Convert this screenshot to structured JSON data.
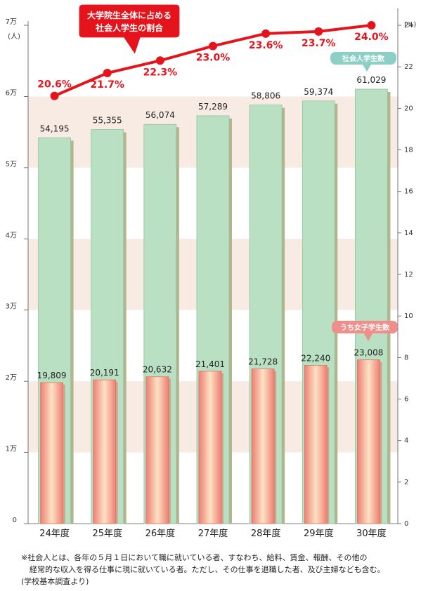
{
  "chart_data": {
    "type": "bar",
    "categories": [
      "24年度",
      "25年度",
      "26年度",
      "27年度",
      "28年度",
      "29年度",
      "30年度"
    ],
    "series": [
      {
        "name": "社会人学生数",
        "type": "bar",
        "axis": "left",
        "color": "#b9e0c2",
        "values": [
          54195,
          55355,
          56074,
          57289,
          58806,
          59374,
          61029
        ],
        "labels": [
          "54,195",
          "55,355",
          "56,074",
          "57,289",
          "58,806",
          "59,374",
          "61,029"
        ]
      },
      {
        "name": "うち女子学生数",
        "type": "bar",
        "axis": "left",
        "color": "#f08a80",
        "values": [
          19809,
          20191,
          20632,
          21401,
          21728,
          22240,
          23008
        ],
        "labels": [
          "19,809",
          "20,191",
          "20,632",
          "21,401",
          "21,728",
          "22,240",
          "23,008"
        ]
      },
      {
        "name": "大学院生全体に占める社会人学生の割合",
        "type": "line",
        "axis": "right",
        "color": "#e5141c",
        "values": [
          20.6,
          21.7,
          22.3,
          23.0,
          23.6,
          23.7,
          24.0
        ],
        "labels": [
          "20.6%",
          "21.7%",
          "22.3%",
          "23.0%",
          "23.6%",
          "23.7%",
          "24.0%"
        ]
      }
    ],
    "y_left": {
      "ylim": [
        0,
        70000
      ],
      "ticks": [
        0,
        10000,
        20000,
        30000,
        40000,
        50000,
        60000,
        70000
      ],
      "tick_labels": [
        "0",
        "1万",
        "2万",
        "3万",
        "4万",
        "5万",
        "6万",
        "7万"
      ],
      "unit": "(人)"
    },
    "y_right": {
      "ylim": [
        0,
        24
      ],
      "ticks": [
        0,
        2,
        4,
        6,
        8,
        10,
        12,
        14,
        16,
        18,
        20,
        22,
        24
      ],
      "tick_labels": [
        "0",
        "2",
        "4",
        "6",
        "8",
        "10",
        "12",
        "14",
        "16",
        "18",
        "20",
        "22",
        "24"
      ],
      "unit": "(%)"
    },
    "callouts": {
      "ratio_line": [
        "大学院生全体に占める",
        "社会人学生の割合"
      ],
      "total_bar": "社会人学生数",
      "female_bar": "うち女子学生数"
    },
    "colors": {
      "band": "#f8ebe4",
      "line": "#e5141c",
      "callout_red": "#e5141c",
      "callout_teal": "#8ccfc4",
      "callout_pink": "#ee8f8b"
    }
  },
  "note": {
    "line1": "※社会人とは、各年の５月１日において職に就いている者、すなわち、給料、賃金、報酬、その他の",
    "line2": "経常的な収入を得る仕事に現に就いている者。ただし、その仕事を退職した者、及び主婦なども含む。",
    "line3": "(学校基本調査より)"
  }
}
